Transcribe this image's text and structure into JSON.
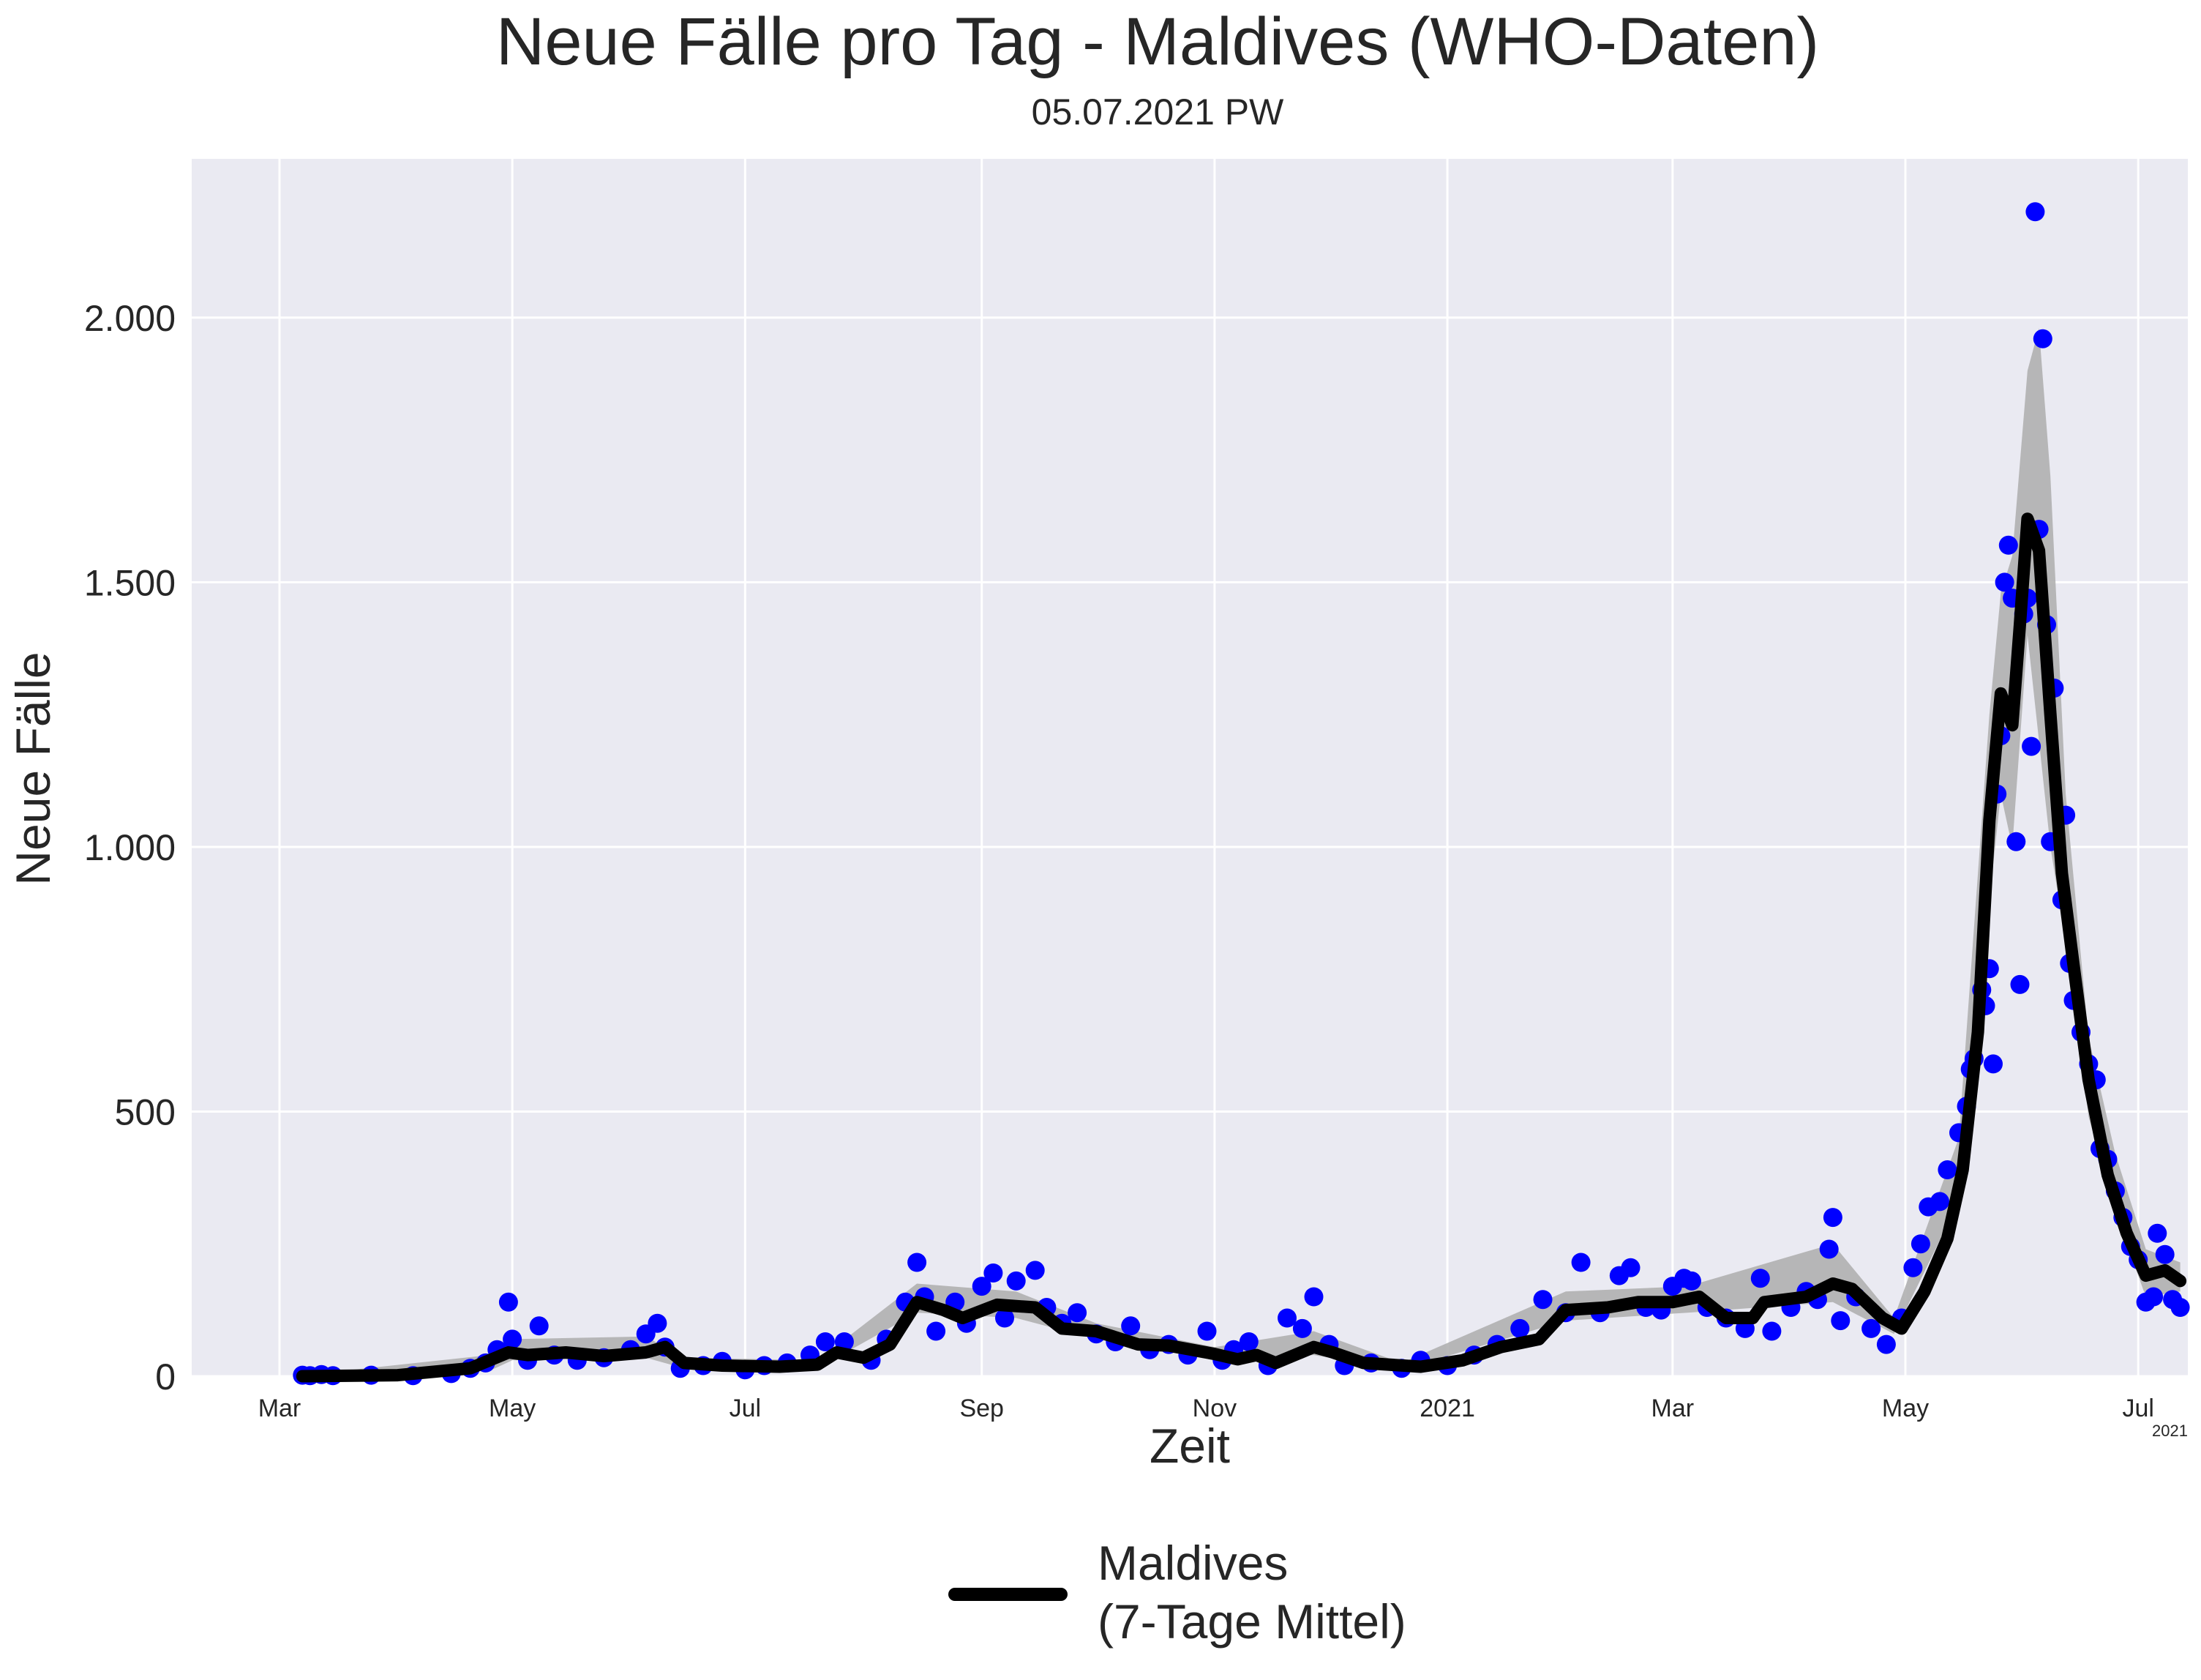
{
  "chart_data": {
    "type": "scatter",
    "title": "Neue Fälle pro Tag - Maldives (WHO-Daten)",
    "subtitle": "05.07.2021 PW",
    "xlabel": "Zeit",
    "ylabel": "Neue Fälle",
    "x_range": [
      "2020-02-07",
      "2021-07-14"
    ],
    "ylim": [
      0,
      2300
    ],
    "x_ticks": [
      {
        "date": "2020-03-01",
        "label": "Mar"
      },
      {
        "date": "2020-05-01",
        "label": "May"
      },
      {
        "date": "2020-07-01",
        "label": "Jul"
      },
      {
        "date": "2020-09-01",
        "label": "Sep"
      },
      {
        "date": "2020-11-01",
        "label": "Nov"
      },
      {
        "date": "2021-01-01",
        "label": "2021"
      },
      {
        "date": "2021-03-01",
        "label": "Mar"
      },
      {
        "date": "2021-05-01",
        "label": "May"
      },
      {
        "date": "2021-07-01",
        "label": "Jul"
      }
    ],
    "x_offset_label": "2021",
    "y_ticks": [
      {
        "value": 0,
        "label": "0"
      },
      {
        "value": 500,
        "label": "500"
      },
      {
        "value": 1000,
        "label": "1.000"
      },
      {
        "value": 1500,
        "label": "1.500"
      },
      {
        "value": 2000,
        "label": "2.000"
      }
    ],
    "grid": true,
    "legend_position": "bottom-center",
    "colors": {
      "points": "#0000ff",
      "line": "#000000",
      "band": "#b0b0b0",
      "plot_bg": "#eaeaf2",
      "grid": "#ffffff"
    },
    "series": [
      {
        "name": "Maldives (7-Tage Mittel)",
        "kind": "7-day mean",
        "points": [
          [
            "2020-03-07",
            0
          ],
          [
            "2020-04-01",
            2
          ],
          [
            "2020-04-20",
            15
          ],
          [
            "2020-04-30",
            45
          ],
          [
            "2020-05-05",
            40
          ],
          [
            "2020-05-15",
            45
          ],
          [
            "2020-05-25",
            38
          ],
          [
            "2020-06-05",
            45
          ],
          [
            "2020-06-10",
            55
          ],
          [
            "2020-06-15",
            25
          ],
          [
            "2020-06-25",
            20
          ],
          [
            "2020-07-10",
            18
          ],
          [
            "2020-07-20",
            22
          ],
          [
            "2020-07-25",
            45
          ],
          [
            "2020-08-01",
            35
          ],
          [
            "2020-08-08",
            60
          ],
          [
            "2020-08-15",
            140
          ],
          [
            "2020-08-22",
            125
          ],
          [
            "2020-08-27",
            110
          ],
          [
            "2020-09-05",
            135
          ],
          [
            "2020-09-15",
            130
          ],
          [
            "2020-09-22",
            90
          ],
          [
            "2020-10-01",
            85
          ],
          [
            "2020-10-12",
            60
          ],
          [
            "2020-10-20",
            58
          ],
          [
            "2020-11-01",
            42
          ],
          [
            "2020-11-07",
            32
          ],
          [
            "2020-11-12",
            40
          ],
          [
            "2020-11-17",
            25
          ],
          [
            "2020-11-27",
            55
          ],
          [
            "2020-12-02",
            45
          ],
          [
            "2020-12-10",
            25
          ],
          [
            "2020-12-25",
            18
          ],
          [
            "2021-01-05",
            30
          ],
          [
            "2021-01-15",
            55
          ],
          [
            "2021-01-25",
            70
          ],
          [
            "2021-02-01",
            125
          ],
          [
            "2021-02-12",
            130
          ],
          [
            "2021-02-20",
            140
          ],
          [
            "2021-03-01",
            140
          ],
          [
            "2021-03-08",
            150
          ],
          [
            "2021-03-15",
            110
          ],
          [
            "2021-03-22",
            110
          ],
          [
            "2021-03-25",
            140
          ],
          [
            "2021-04-05",
            150
          ],
          [
            "2021-04-12",
            175
          ],
          [
            "2021-04-17",
            165
          ],
          [
            "2021-04-25",
            110
          ],
          [
            "2021-04-30",
            90
          ],
          [
            "2021-05-06",
            160
          ],
          [
            "2021-05-12",
            260
          ],
          [
            "2021-05-16",
            390
          ],
          [
            "2021-05-20",
            650
          ],
          [
            "2021-05-23",
            1050
          ],
          [
            "2021-05-26",
            1290
          ],
          [
            "2021-05-29",
            1230
          ],
          [
            "2021-05-31",
            1420
          ],
          [
            "2021-06-02",
            1620
          ],
          [
            "2021-06-05",
            1560
          ],
          [
            "2021-06-08",
            1250
          ],
          [
            "2021-06-11",
            950
          ],
          [
            "2021-06-14",
            780
          ],
          [
            "2021-06-18",
            560
          ],
          [
            "2021-06-23",
            380
          ],
          [
            "2021-06-28",
            270
          ],
          [
            "2021-07-03",
            190
          ],
          [
            "2021-07-08",
            200
          ],
          [
            "2021-07-12",
            180
          ]
        ]
      },
      {
        "name": "",
        "kind": "daily",
        "points": [
          [
            "2020-03-07",
            2
          ],
          [
            "2020-03-09",
            1
          ],
          [
            "2020-03-12",
            3
          ],
          [
            "2020-03-15",
            1
          ],
          [
            "2020-03-25",
            2
          ],
          [
            "2020-04-05",
            1
          ],
          [
            "2020-04-15",
            5
          ],
          [
            "2020-04-20",
            15
          ],
          [
            "2020-04-24",
            25
          ],
          [
            "2020-04-27",
            50
          ],
          [
            "2020-04-30",
            140
          ],
          [
            "2020-05-01",
            70
          ],
          [
            "2020-05-05",
            30
          ],
          [
            "2020-05-08",
            95
          ],
          [
            "2020-05-12",
            40
          ],
          [
            "2020-05-18",
            30
          ],
          [
            "2020-05-25",
            35
          ],
          [
            "2020-06-01",
            50
          ],
          [
            "2020-06-05",
            80
          ],
          [
            "2020-06-08",
            100
          ],
          [
            "2020-06-10",
            55
          ],
          [
            "2020-06-14",
            15
          ],
          [
            "2020-06-20",
            20
          ],
          [
            "2020-06-25",
            28
          ],
          [
            "2020-07-01",
            12
          ],
          [
            "2020-07-06",
            20
          ],
          [
            "2020-07-12",
            25
          ],
          [
            "2020-07-18",
            40
          ],
          [
            "2020-07-22",
            65
          ],
          [
            "2020-07-27",
            65
          ],
          [
            "2020-08-03",
            30
          ],
          [
            "2020-08-07",
            70
          ],
          [
            "2020-08-12",
            140
          ],
          [
            "2020-08-15",
            215
          ],
          [
            "2020-08-17",
            150
          ],
          [
            "2020-08-20",
            85
          ],
          [
            "2020-08-25",
            140
          ],
          [
            "2020-08-28",
            100
          ],
          [
            "2020-09-01",
            170
          ],
          [
            "2020-09-04",
            195
          ],
          [
            "2020-09-07",
            110
          ],
          [
            "2020-09-10",
            180
          ],
          [
            "2020-09-15",
            200
          ],
          [
            "2020-09-18",
            130
          ],
          [
            "2020-09-22",
            100
          ],
          [
            "2020-09-26",
            120
          ],
          [
            "2020-10-01",
            80
          ],
          [
            "2020-10-06",
            65
          ],
          [
            "2020-10-10",
            95
          ],
          [
            "2020-10-15",
            50
          ],
          [
            "2020-10-20",
            60
          ],
          [
            "2020-10-25",
            40
          ],
          [
            "2020-10-30",
            85
          ],
          [
            "2020-11-03",
            30
          ],
          [
            "2020-11-06",
            50
          ],
          [
            "2020-11-10",
            65
          ],
          [
            "2020-11-15",
            20
          ],
          [
            "2020-11-20",
            110
          ],
          [
            "2020-11-24",
            90
          ],
          [
            "2020-11-27",
            150
          ],
          [
            "2020-12-01",
            60
          ],
          [
            "2020-12-05",
            20
          ],
          [
            "2020-12-12",
            25
          ],
          [
            "2020-12-20",
            15
          ],
          [
            "2020-12-25",
            30
          ],
          [
            "2021-01-01",
            20
          ],
          [
            "2021-01-08",
            40
          ],
          [
            "2021-01-14",
            60
          ],
          [
            "2021-01-20",
            90
          ],
          [
            "2021-01-26",
            145
          ],
          [
            "2021-02-01",
            120
          ],
          [
            "2021-02-05",
            215
          ],
          [
            "2021-02-10",
            120
          ],
          [
            "2021-02-15",
            190
          ],
          [
            "2021-02-18",
            205
          ],
          [
            "2021-02-22",
            130
          ],
          [
            "2021-02-26",
            125
          ],
          [
            "2021-03-01",
            170
          ],
          [
            "2021-03-04",
            185
          ],
          [
            "2021-03-06",
            180
          ],
          [
            "2021-03-10",
            130
          ],
          [
            "2021-03-15",
            110
          ],
          [
            "2021-03-20",
            90
          ],
          [
            "2021-03-24",
            185
          ],
          [
            "2021-03-27",
            85
          ],
          [
            "2021-04-01",
            130
          ],
          [
            "2021-04-05",
            160
          ],
          [
            "2021-04-08",
            145
          ],
          [
            "2021-04-11",
            240
          ],
          [
            "2021-04-12",
            300
          ],
          [
            "2021-04-14",
            105
          ],
          [
            "2021-04-18",
            150
          ],
          [
            "2021-04-22",
            90
          ],
          [
            "2021-04-26",
            60
          ],
          [
            "2021-04-30",
            110
          ],
          [
            "2021-05-03",
            205
          ],
          [
            "2021-05-05",
            250
          ],
          [
            "2021-05-07",
            320
          ],
          [
            "2021-05-10",
            330
          ],
          [
            "2021-05-12",
            390
          ],
          [
            "2021-05-15",
            460
          ],
          [
            "2021-05-17",
            510
          ],
          [
            "2021-05-18",
            580
          ],
          [
            "2021-05-19",
            600
          ],
          [
            "2021-05-21",
            730
          ],
          [
            "2021-05-22",
            700
          ],
          [
            "2021-05-23",
            770
          ],
          [
            "2021-05-24",
            590
          ],
          [
            "2021-05-25",
            1100
          ],
          [
            "2021-05-26",
            1210
          ],
          [
            "2021-05-27",
            1500
          ],
          [
            "2021-05-28",
            1570
          ],
          [
            "2021-05-29",
            1470
          ],
          [
            "2021-05-30",
            1010
          ],
          [
            "2021-05-31",
            740
          ],
          [
            "2021-06-01",
            1440
          ],
          [
            "2021-06-02",
            1470
          ],
          [
            "2021-06-03",
            1190
          ],
          [
            "2021-06-04",
            2200
          ],
          [
            "2021-06-05",
            1600
          ],
          [
            "2021-06-06",
            1960
          ],
          [
            "2021-06-07",
            1420
          ],
          [
            "2021-06-08",
            1010
          ],
          [
            "2021-06-09",
            1300
          ],
          [
            "2021-06-11",
            900
          ],
          [
            "2021-06-12",
            1060
          ],
          [
            "2021-06-13",
            780
          ],
          [
            "2021-06-14",
            710
          ],
          [
            "2021-06-16",
            650
          ],
          [
            "2021-06-18",
            590
          ],
          [
            "2021-06-20",
            560
          ],
          [
            "2021-06-21",
            430
          ],
          [
            "2021-06-23",
            410
          ],
          [
            "2021-06-25",
            350
          ],
          [
            "2021-06-27",
            300
          ],
          [
            "2021-06-29",
            245
          ],
          [
            "2021-07-01",
            220
          ],
          [
            "2021-07-03",
            140
          ],
          [
            "2021-07-05",
            150
          ],
          [
            "2021-07-06",
            270
          ],
          [
            "2021-07-08",
            230
          ],
          [
            "2021-07-10",
            145
          ],
          [
            "2021-07-12",
            130
          ]
        ]
      }
    ],
    "band": {
      "description": "Bereich um das 7-Tage Mittel",
      "points": [
        [
          "2020-03-07",
          0,
          2
        ],
        [
          "2020-04-25",
          10,
          40
        ],
        [
          "2020-05-01",
          30,
          70
        ],
        [
          "2020-06-05",
          35,
          75
        ],
        [
          "2020-06-15",
          15,
          35
        ],
        [
          "2020-07-20",
          15,
          30
        ],
        [
          "2020-08-15",
          120,
          175
        ],
        [
          "2020-09-10",
          110,
          160
        ],
        [
          "2020-10-01",
          70,
          100
        ],
        [
          "2020-11-01",
          30,
          55
        ],
        [
          "2020-11-27",
          40,
          85
        ],
        [
          "2020-12-20",
          12,
          25
        ],
        [
          "2021-02-01",
          105,
          160
        ],
        [
          "2021-03-05",
          120,
          170
        ],
        [
          "2021-04-12",
          140,
          250
        ],
        [
          "2021-04-28",
          80,
          110
        ],
        [
          "2021-05-15",
          330,
          450
        ],
        [
          "2021-05-23",
          900,
          1250
        ],
        [
          "2021-05-26",
          1100,
          1480
        ],
        [
          "2021-05-29",
          1000,
          1550
        ],
        [
          "2021-06-02",
          1400,
          1900
        ],
        [
          "2021-06-05",
          1200,
          1980
        ],
        [
          "2021-06-08",
          1000,
          1700
        ],
        [
          "2021-06-12",
          820,
          1100
        ],
        [
          "2021-06-18",
          490,
          640
        ],
        [
          "2021-06-25",
          310,
          420
        ],
        [
          "2021-07-03",
          150,
          240
        ],
        [
          "2021-07-12",
          160,
          215
        ]
      ]
    }
  },
  "legend": {
    "label_line1": "Maldives",
    "label_line2": "(7-Tage Mittel)"
  }
}
